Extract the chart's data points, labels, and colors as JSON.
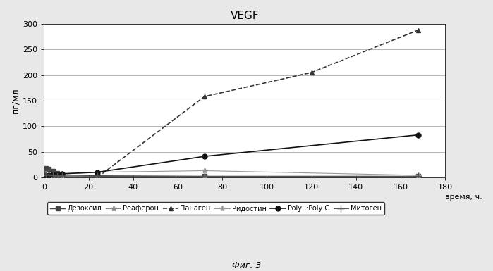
{
  "title": "VEGF",
  "ylabel": "пг/мл",
  "xlabel_right": "время, ч.",
  "figcaption": "Фиг. 3",
  "xlim": [
    0,
    175
  ],
  "ylim": [
    0,
    300
  ],
  "yticks": [
    0,
    50,
    100,
    150,
    200,
    250,
    300
  ],
  "xticks": [
    0,
    20,
    40,
    60,
    80,
    100,
    120,
    140,
    160
  ],
  "xtick_extra": 180,
  "series": {
    "Дезоксил": {
      "x": [
        0,
        1,
        2,
        4,
        6,
        8,
        24,
        72,
        168
      ],
      "y": [
        5,
        18,
        16,
        12,
        8,
        5,
        3,
        2,
        2
      ],
      "color": "#444444",
      "linestyle": "-",
      "marker": "s",
      "markersize": 4,
      "linewidth": 1.0
    },
    "Реаферон": {
      "x": [
        0,
        1,
        2,
        4,
        6,
        8,
        24,
        72,
        168
      ],
      "y": [
        3,
        5,
        4,
        3,
        2,
        2,
        1,
        1,
        1
      ],
      "color": "#888888",
      "linestyle": "-",
      "marker": "*",
      "markersize": 6,
      "linewidth": 0.8
    },
    "Панаген": {
      "x": [
        24,
        72,
        120,
        168
      ],
      "y": [
        0,
        158,
        205,
        288
      ],
      "color": "#333333",
      "linestyle": "--",
      "marker": "^",
      "markersize": 5,
      "linewidth": 1.2
    },
    "Ридостин": {
      "x": [
        0,
        1,
        2,
        4,
        6,
        8,
        24,
        72,
        168
      ],
      "y": [
        2,
        3,
        4,
        5,
        6,
        7,
        10,
        13,
        4
      ],
      "color": "#999999",
      "linestyle": "-",
      "marker": "*",
      "markersize": 6,
      "linewidth": 0.8
    },
    "Poly I:Poly C": {
      "x": [
        0,
        1,
        2,
        4,
        6,
        8,
        24,
        72,
        168
      ],
      "y": [
        2,
        3,
        4,
        5,
        6,
        7,
        10,
        41,
        83
      ],
      "color": "#111111",
      "linestyle": "-",
      "marker": "o",
      "markersize": 5,
      "linewidth": 1.2
    },
    "Митоген": {
      "x": [
        0,
        1,
        2,
        4,
        6,
        8,
        24,
        72,
        168
      ],
      "y": [
        4,
        6,
        5,
        4,
        3,
        3,
        2,
        2,
        2
      ],
      "color": "#555555",
      "linestyle": "-",
      "marker": "+",
      "markersize": 7,
      "linewidth": 0.8
    }
  },
  "fig_bg": "#e8e8e8",
  "plot_bg": "#ffffff"
}
